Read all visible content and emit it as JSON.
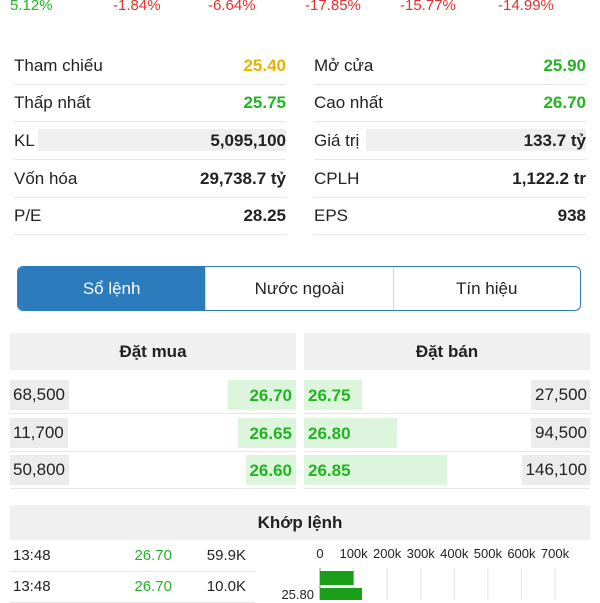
{
  "changes": [
    {
      "text": "5.12%",
      "color": "#22b422"
    },
    {
      "text": "-1.84%",
      "color": "#e0322f"
    },
    {
      "text": "-6.64%",
      "color": "#e0322f"
    },
    {
      "text": "-17.85%",
      "color": "#e0322f"
    },
    {
      "text": "-15.77%",
      "color": "#e0322f"
    },
    {
      "text": "-14.99%",
      "color": "#e0322f"
    }
  ],
  "stats": {
    "left": [
      {
        "label": "Tham chiếu",
        "value": "25.40",
        "color": "#e6b400"
      },
      {
        "label": "Thấp nhất",
        "value": "25.75",
        "color": "#22b422"
      },
      {
        "label": "KL",
        "value": "5,095,100",
        "color": "#222222"
      },
      {
        "label": "Vốn hóa",
        "value": "29,738.7 tỷ",
        "color": "#222222"
      },
      {
        "label": "P/E",
        "value": "28.25",
        "color": "#222222"
      }
    ],
    "right": [
      {
        "label": "Mở cửa",
        "value": "25.90",
        "color": "#22b422"
      },
      {
        "label": "Cao nhất",
        "value": "26.70",
        "color": "#22b422"
      },
      {
        "label": "Giá trị",
        "value": "133.7 tỷ",
        "color": "#222222"
      },
      {
        "label": "CPLH",
        "value": "1,122.2 tr",
        "color": "#222222"
      },
      {
        "label": "EPS",
        "value": "938",
        "color": "#222222"
      }
    ]
  },
  "tabs": [
    "Sổ lệnh",
    "Nước ngoài",
    "Tín hiệu"
  ],
  "active_tab": 0,
  "order_book": {
    "buy_title": "Đặt mua",
    "sell_title": "Đặt bán",
    "rows": [
      [
        "68,500",
        "26.70",
        "26.75",
        "27,500"
      ],
      [
        "11,700",
        "26.65",
        "26.80",
        "94,500"
      ],
      [
        "50,800",
        "26.60",
        "26.85",
        "146,100"
      ]
    ]
  },
  "trades": {
    "title": "Khớp lệnh",
    "rows": [
      [
        "13:48",
        "26.70",
        "59.9K"
      ],
      [
        "13:48",
        "26.70",
        "10.0K"
      ]
    ]
  },
  "chart_data": {
    "type": "bar",
    "orientation": "horizontal",
    "categories": [
      null,
      "25.80"
    ],
    "values": [
      100000,
      125000
    ],
    "color": "#1a9e1a",
    "xlim": [
      0,
      700000
    ],
    "xticks": [
      0,
      {
        "value": 100000,
        "label": "100k"
      },
      {
        "value": 200000,
        "label": "200k"
      },
      {
        "value": 300000,
        "label": "300k"
      },
      {
        "value": 400000,
        "label": "400k"
      },
      {
        "value": 500000,
        "label": "500k"
      },
      {
        "value": 600000,
        "label": "600k"
      },
      {
        "value": 700000,
        "label": "700k"
      }
    ],
    "grid": true
  }
}
